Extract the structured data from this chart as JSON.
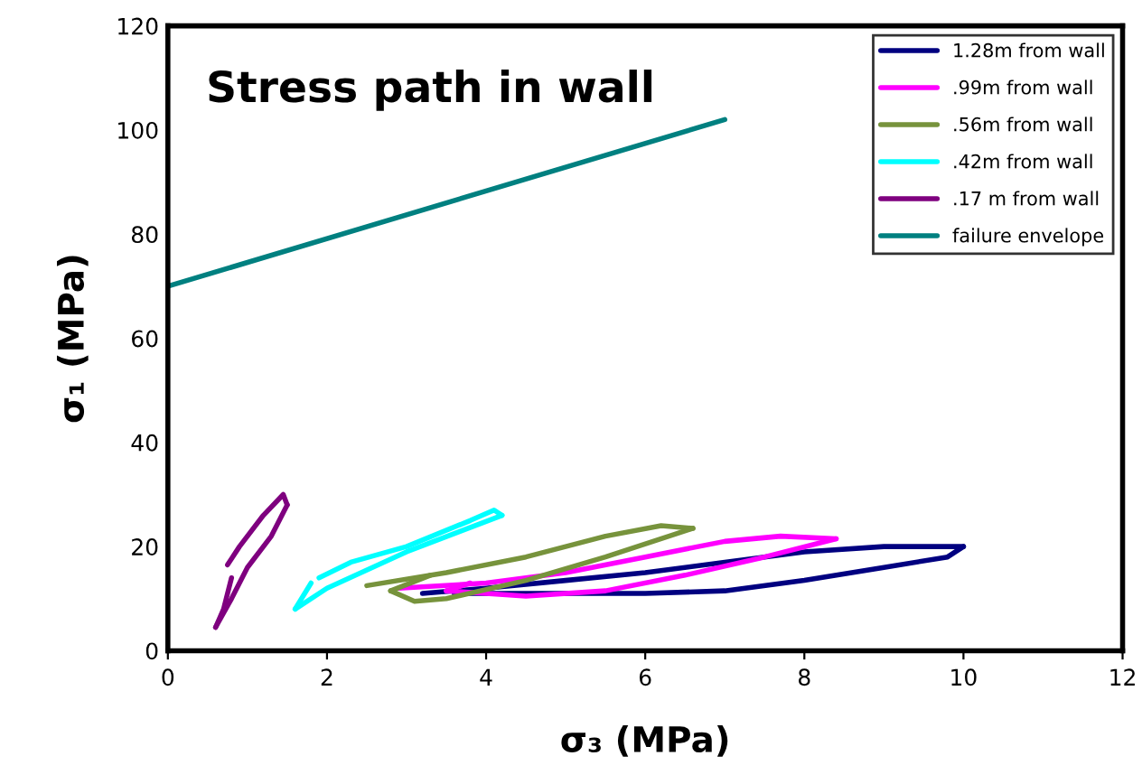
{
  "chart_data": {
    "type": "line",
    "title": "Stress path in wall",
    "xlabel": "σ₃ (MPa)",
    "ylabel": "σ₁ (MPa)",
    "xlim": [
      0,
      12
    ],
    "ylim": [
      0,
      120
    ],
    "xticks": [
      0,
      2,
      4,
      6,
      8,
      10,
      12
    ],
    "yticks": [
      0,
      20,
      40,
      60,
      80,
      100,
      120
    ],
    "grid": false,
    "legend": "top right",
    "marker": "none",
    "line_style": "solid",
    "series": [
      {
        "name": "1.28m from wall",
        "color": "#000080",
        "x": [
          3.2,
          4,
          5,
          6,
          7,
          8,
          9,
          10
        ],
        "values": [
          11,
          12,
          13.5,
          15,
          17,
          19,
          20,
          20
        ]
      },
      {
        "color": "#000080",
        "x": [
          3.6,
          4,
          5,
          6,
          7,
          8,
          9,
          9.8,
          10
        ],
        "values": [
          11,
          11,
          11,
          11,
          11.5,
          13.5,
          16,
          18,
          20
        ]
      },
      {
        "name": ".99m from wall",
        "color": "#ff00ff",
        "x": [
          2.9,
          4,
          5,
          6,
          7,
          7.7,
          8.4
        ],
        "values": [
          12,
          13,
          15,
          18,
          21,
          22,
          21.5
        ]
      },
      {
        "color": "#ff00ff",
        "x": [
          3.5,
          4.5,
          5.5,
          6.5,
          7.5,
          8.4
        ],
        "values": [
          11.5,
          10.5,
          11.5,
          14.5,
          18,
          21.5
        ]
      },
      {
        "color": "#ff00ff",
        "x": [
          3.5,
          3.8
        ],
        "values": [
          11.5,
          13
        ]
      },
      {
        "name": ".56m from wall",
        "color": "#77933c",
        "x": [
          2.5,
          3.5,
          4.5,
          5.5,
          6.2,
          6.6
        ],
        "values": [
          12.5,
          15,
          18,
          22,
          24,
          23.5
        ]
      },
      {
        "color": "#77933c",
        "x": [
          2.8,
          3.1,
          3.5,
          4.5,
          5.5,
          6.6
        ],
        "values": [
          11.5,
          9.5,
          10,
          13.5,
          18,
          23.5
        ]
      },
      {
        "color": "#77933c",
        "x": [
          2.8,
          3.3
        ],
        "values": [
          11.5,
          14.5
        ]
      },
      {
        "name": ".42m from wall",
        "color": "#00ffff",
        "x": [
          1.9,
          2.3,
          3,
          3.8,
          4.1,
          4.2
        ],
        "values": [
          14,
          17,
          20,
          25,
          27,
          26
        ]
      },
      {
        "color": "#00ffff",
        "x": [
          1.6,
          2,
          3,
          4.2
        ],
        "values": [
          8,
          12,
          19,
          26
        ]
      },
      {
        "color": "#00ffff",
        "x": [
          1.6,
          1.8
        ],
        "values": [
          8,
          13
        ]
      },
      {
        "name": ".17 m from wall",
        "color": "#7f007f",
        "x": [
          0.75,
          0.9,
          1.2,
          1.45,
          1.5
        ],
        "values": [
          16.5,
          20,
          26,
          30,
          28
        ]
      },
      {
        "color": "#7f007f",
        "x": [
          0.6,
          0.8,
          1.0,
          1.3,
          1.5
        ],
        "values": [
          4.5,
          10,
          16,
          22,
          28
        ]
      },
      {
        "color": "#7f007f",
        "x": [
          0.6,
          0.7,
          0.8
        ],
        "values": [
          4.5,
          8,
          14
        ]
      },
      {
        "name": "failure envelope",
        "color": "#008080",
        "x": [
          0,
          7
        ],
        "values": [
          70,
          102
        ]
      }
    ]
  }
}
